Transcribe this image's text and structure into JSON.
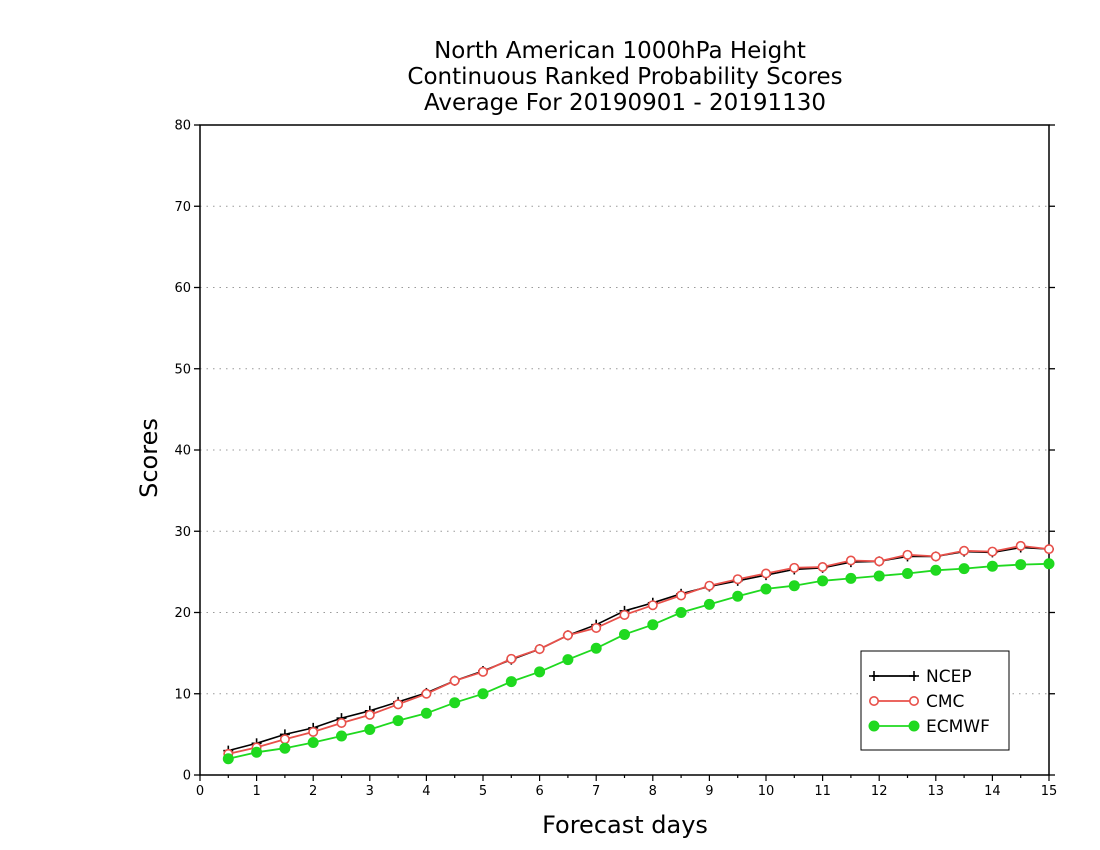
{
  "chart_data": {
    "type": "line",
    "title": [
      "North American 1000hPa Height",
      "Continuous Ranked Probability Scores",
      "Average For 20190901 - 20191130"
    ],
    "xlabel": "Forecast days",
    "ylabel": "Scores",
    "xlim": [
      0,
      15
    ],
    "ylim": [
      0,
      80
    ],
    "xticks": [
      "0",
      "1",
      "2",
      "3",
      "4",
      "5",
      "6",
      "7",
      "8",
      "9",
      "10",
      "11",
      "12",
      "13",
      "14",
      "15"
    ],
    "yticks": [
      "0",
      "10",
      "20",
      "30",
      "40",
      "50",
      "60",
      "70",
      "80"
    ],
    "grid": "horizontal dotted",
    "legend_position": "bottom-right",
    "x": [
      0.5,
      1,
      1.5,
      2,
      2.5,
      3,
      3.5,
      4,
      4.5,
      5,
      5.5,
      6,
      6.5,
      7,
      7.5,
      8,
      8.5,
      9,
      9.5,
      10,
      10.5,
      11,
      11.5,
      12,
      12.5,
      13,
      13.5,
      14,
      14.5,
      15
    ],
    "series": [
      {
        "name": "NCEP",
        "color": "#000000",
        "marker": "plus",
        "values": [
          3.0,
          3.9,
          5.0,
          5.8,
          7.0,
          7.9,
          9.0,
          10.1,
          11.6,
          12.8,
          14.2,
          15.5,
          17.2,
          18.5,
          20.2,
          21.2,
          22.3,
          23.2,
          23.9,
          24.6,
          25.3,
          25.5,
          26.2,
          26.3,
          26.9,
          26.9,
          27.5,
          27.4,
          28.0,
          27.8
        ]
      },
      {
        "name": "CMC",
        "color": "#e8504a",
        "marker": "open-circle",
        "values": [
          2.6,
          3.4,
          4.4,
          5.3,
          6.4,
          7.4,
          8.7,
          10.0,
          11.6,
          12.7,
          14.3,
          15.5,
          17.2,
          18.1,
          19.7,
          20.9,
          22.1,
          23.3,
          24.1,
          24.8,
          25.5,
          25.6,
          26.4,
          26.3,
          27.1,
          26.9,
          27.6,
          27.5,
          28.2,
          27.8
        ]
      },
      {
        "name": "ECMWF",
        "color": "#1fd91f",
        "marker": "filled-circle",
        "values": [
          2.0,
          2.8,
          3.3,
          4.0,
          4.8,
          5.6,
          6.7,
          7.6,
          8.9,
          10.0,
          11.5,
          12.7,
          14.2,
          15.6,
          17.3,
          18.5,
          20.0,
          21.0,
          22.0,
          22.9,
          23.3,
          23.9,
          24.2,
          24.5,
          24.8,
          25.2,
          25.4,
          25.7,
          25.9,
          26.0
        ]
      }
    ]
  }
}
